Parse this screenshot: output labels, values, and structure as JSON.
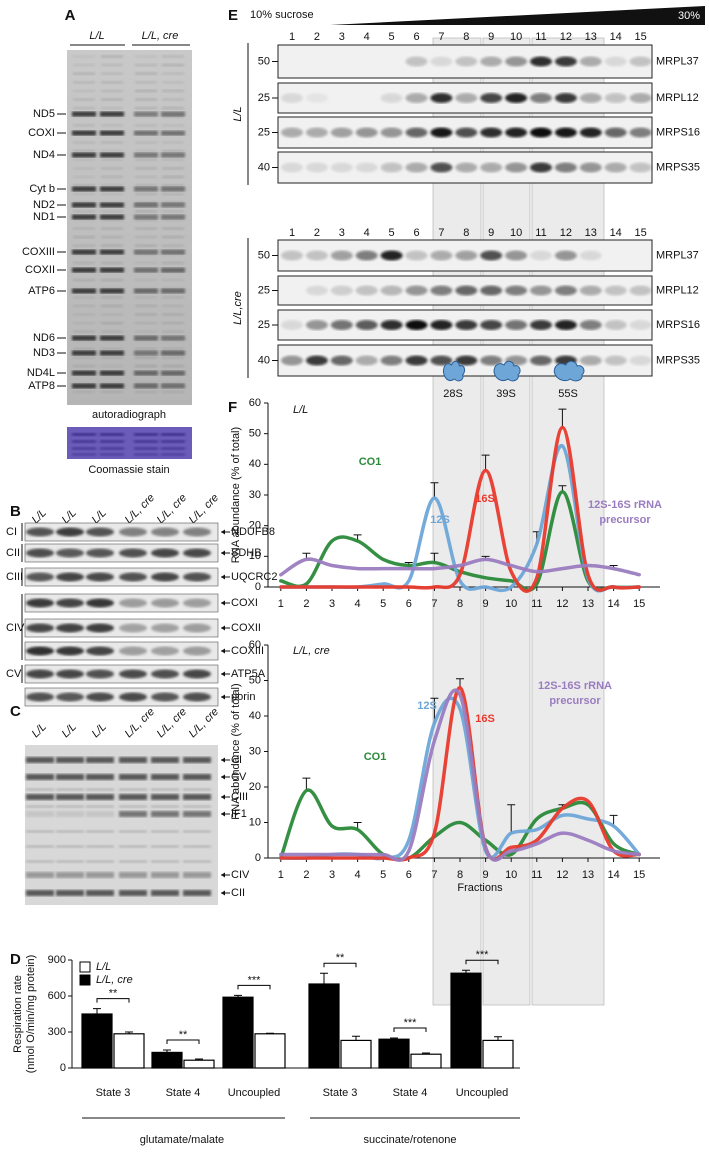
{
  "panel_a": {
    "label": "A",
    "lanes": [
      "L/L",
      "L/L, cre"
    ],
    "bands": [
      "ND5",
      "COXI",
      "ND4",
      "Cyt b",
      "ND2",
      "ND1",
      "COXIII",
      "COXII",
      "ATP6",
      "ND6",
      "ND3",
      "ND4L",
      "ATP8"
    ],
    "caption": "autoradiograph",
    "stain": "Coomassie stain"
  },
  "panel_b": {
    "label": "B",
    "lanes": [
      "L/L",
      "L/L",
      "L/L",
      "L/L, cre",
      "L/L, cre",
      "L/L, cre"
    ],
    "complexes": [
      "CI",
      "CII",
      "CIII",
      "CIV",
      "CV"
    ],
    "proteins": [
      "NDUFB8",
      "SDHB",
      "UQCRC2",
      "COXI",
      "COXII",
      "COXIII",
      "ATP5A",
      "porin"
    ]
  },
  "panel_c": {
    "label": "C",
    "lanes": [
      "L/L",
      "L/L",
      "L/L",
      "L/L, cre",
      "L/L, cre",
      "L/L, cre"
    ],
    "bands": [
      "CI",
      "CV",
      "CIII",
      "IF1",
      "CIV",
      "CII"
    ]
  },
  "panel_e": {
    "label": "E",
    "gradient_start": "10% sucrose",
    "gradient_end": "30%",
    "fractions": [
      1,
      2,
      3,
      4,
      5,
      6,
      7,
      8,
      9,
      10,
      11,
      12,
      13,
      14,
      15
    ],
    "genotypes": [
      {
        "name": "L/L",
        "blots": [
          {
            "marker": "50",
            "protein": "MRPL37"
          },
          {
            "marker": "25",
            "protein": "MRPL12"
          },
          {
            "marker": "25",
            "protein": "MRPS16"
          },
          {
            "marker": "40",
            "protein": "MRPS35"
          }
        ]
      },
      {
        "name": "L/L,cre",
        "blots": [
          {
            "marker": "50",
            "protein": "MRPL37"
          },
          {
            "marker": "25",
            "protein": "MRPL12"
          },
          {
            "marker": "25",
            "protein": "MRPS16"
          },
          {
            "marker": "40",
            "protein": "MRPS35"
          }
        ]
      }
    ],
    "particles": [
      "28S",
      "39S",
      "55S"
    ]
  },
  "panel_f": {
    "label": "F"
  },
  "chart_data": [
    {
      "type": "bar",
      "label": "D",
      "ylabel": [
        "Respiration rate",
        "(nmol O/min/mg protein)"
      ],
      "categories": [
        "State 3",
        "State 4",
        "Uncoupled",
        "State 3",
        "State 4",
        "Uncoupled"
      ],
      "groups": [
        "glutamate/malate",
        "succinate/rotenone"
      ],
      "series": [
        {
          "name": "L/L",
          "color": "#ffffff",
          "values": [
            285,
            65,
            285,
            230,
            115,
            230
          ],
          "errors": [
            15,
            10,
            5,
            35,
            10,
            30
          ]
        },
        {
          "name": "L/L, cre",
          "color": "#000000",
          "values": [
            450,
            130,
            590,
            700,
            240,
            790
          ],
          "errors": [
            45,
            20,
            15,
            90,
            10,
            25
          ]
        }
      ],
      "significance": [
        "**",
        "**",
        "***",
        "**",
        "***",
        "***"
      ],
      "ylim": [
        0,
        900
      ],
      "yticks": [
        0,
        300,
        600,
        900
      ]
    },
    {
      "type": "line",
      "subtitle": "L/L",
      "ylabel": "RNA abundance (% of total)",
      "x": [
        1,
        2,
        3,
        4,
        5,
        6,
        7,
        8,
        9,
        10,
        11,
        12,
        13,
        14,
        15
      ],
      "xlim": [
        0.5,
        15.5
      ],
      "xticks": [
        1,
        2,
        3,
        4,
        5,
        6,
        7,
        8,
        9,
        10,
        11,
        12,
        13,
        14,
        15
      ],
      "ylim": [
        0,
        60
      ],
      "yticks": [
        0,
        10,
        20,
        30,
        40,
        50,
        60
      ],
      "series": [
        {
          "name": "CO1",
          "color": "#2a8a3a",
          "values": [
            2,
            1,
            15,
            15,
            9,
            7,
            8,
            5,
            3,
            2,
            1,
            31,
            2,
            0,
            0
          ],
          "errors": [
            null,
            null,
            null,
            2,
            null,
            null,
            3,
            null,
            null,
            null,
            null,
            2,
            null,
            null,
            null
          ]
        },
        {
          "name": "12S",
          "color": "#6ea6d8",
          "values": [
            0,
            0,
            0,
            0,
            1,
            2,
            29,
            2,
            0,
            0,
            14,
            46,
            3,
            0,
            0
          ],
          "errors": [
            null,
            null,
            null,
            null,
            null,
            null,
            5,
            null,
            null,
            null,
            4,
            null,
            null,
            null,
            null
          ]
        },
        {
          "name": "16S",
          "color": "#e83a2c",
          "values": [
            0,
            0,
            0,
            0,
            0,
            0,
            0,
            4,
            38,
            5,
            3,
            52,
            4,
            0,
            0
          ],
          "errors": [
            null,
            null,
            null,
            null,
            null,
            null,
            null,
            null,
            5,
            null,
            null,
            6,
            null,
            null,
            null
          ]
        },
        {
          "name": "12S-16S rRNA precursor",
          "color": "#9a7cc0",
          "values": [
            4,
            9,
            7,
            6,
            6,
            6,
            6,
            7,
            9,
            7,
            5,
            6,
            7,
            6,
            4
          ],
          "errors": [
            null,
            2,
            null,
            null,
            null,
            2,
            null,
            null,
            1,
            null,
            null,
            null,
            null,
            1,
            null
          ]
        }
      ]
    },
    {
      "type": "line",
      "subtitle": "L/L, cre",
      "ylabel": "RNA abundance (% of total)",
      "xlabel": "Fractions",
      "x": [
        1,
        2,
        3,
        4,
        5,
        6,
        7,
        8,
        9,
        10,
        11,
        12,
        13,
        14,
        15
      ],
      "xlim": [
        0.5,
        15.5
      ],
      "xticks": [
        1,
        2,
        3,
        4,
        5,
        6,
        7,
        8,
        9,
        10,
        11,
        12,
        13,
        14,
        15
      ],
      "ylim": [
        0,
        60
      ],
      "yticks": [
        0,
        10,
        20,
        30,
        40,
        50,
        60
      ],
      "series": [
        {
          "name": "CO1",
          "color": "#2a8a3a",
          "values": [
            0,
            19,
            9,
            8,
            1,
            0,
            6,
            10,
            5,
            1,
            11,
            14,
            15,
            4,
            1
          ],
          "errors": [
            null,
            3.5,
            null,
            2,
            null,
            null,
            null,
            null,
            null,
            null,
            null,
            1,
            null,
            null,
            null
          ]
        },
        {
          "name": "12S",
          "color": "#6ea6d8",
          "values": [
            0,
            0,
            1,
            1,
            0,
            5,
            38,
            42,
            2,
            7,
            8,
            12,
            11,
            9,
            1
          ],
          "errors": [
            null,
            null,
            null,
            null,
            null,
            null,
            7,
            null,
            null,
            8,
            null,
            null,
            null,
            3,
            null
          ]
        },
        {
          "name": "16S",
          "color": "#e83a2c",
          "values": [
            0,
            0,
            0,
            0,
            0,
            0,
            7,
            48,
            3,
            3,
            5,
            14,
            16,
            2,
            1
          ],
          "errors": [
            null,
            null,
            null,
            null,
            null,
            null,
            null,
            2.5,
            null,
            null,
            null,
            null,
            null,
            null,
            null
          ]
        },
        {
          "name": "12S-16S rRNA precursor",
          "color": "#9a7cc0",
          "values": [
            1,
            1,
            1,
            1,
            1,
            2,
            33,
            46,
            3,
            2,
            4,
            7,
            5,
            2,
            1
          ],
          "errors": [
            null,
            null,
            null,
            null,
            null,
            null,
            null,
            null,
            null,
            null,
            null,
            null,
            null,
            null,
            null
          ]
        }
      ]
    }
  ]
}
